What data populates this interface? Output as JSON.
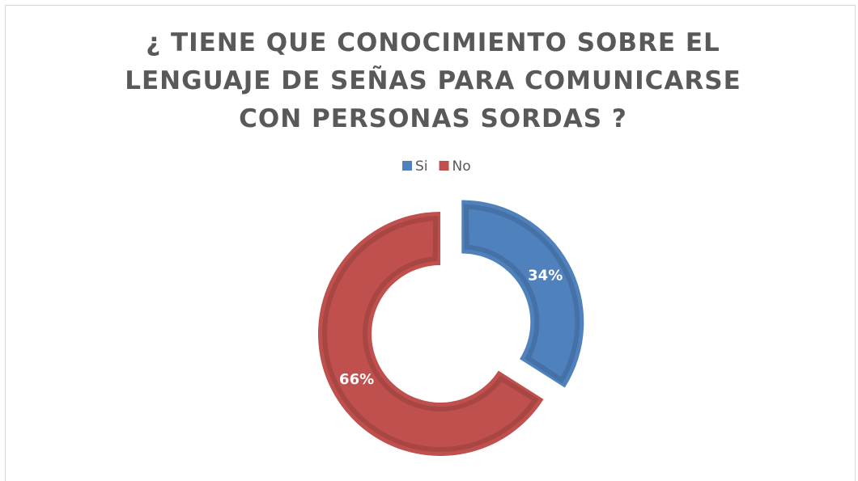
{
  "chart_data": {
    "type": "donut",
    "title": "¿ TIENE QUE CONOCIMIENTO SOBRE EL LENGUAJE DE SEÑAS PARA COMUNICARSE CON PERSONAS SORDAS ?",
    "categories": [
      "Si",
      "No"
    ],
    "values": [
      34,
      66
    ],
    "value_labels": [
      "34%",
      "66%"
    ],
    "colors": [
      "#4f81bd",
      "#c0504d"
    ],
    "legend": "top"
  }
}
